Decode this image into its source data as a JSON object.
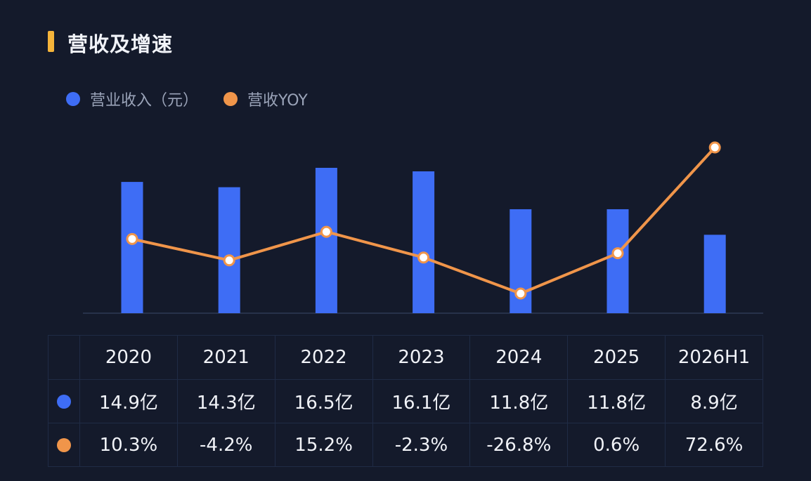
{
  "title": "营收及增速",
  "colors": {
    "revenue": "#3e6df5",
    "yoy": "#f0954a",
    "accent": "#f5b43a"
  },
  "legend": {
    "revenue": "营业收入（元）",
    "yoy": "营收YOY"
  },
  "chart_data": {
    "type": "bar",
    "categories": [
      "2020",
      "2021",
      "2022",
      "2023",
      "2024",
      "2025",
      "2026H1"
    ],
    "series": [
      {
        "name": "营业收入（元）",
        "type": "bar",
        "values": [
          14.9,
          14.3,
          16.5,
          16.1,
          11.8,
          11.8,
          8.9
        ],
        "labels": [
          "14.9亿",
          "14.3亿",
          "16.5亿",
          "16.1亿",
          "11.8亿",
          "11.8亿",
          "8.9亿"
        ]
      },
      {
        "name": "营收YOY",
        "type": "line",
        "values": [
          10.3,
          -4.2,
          15.2,
          -2.3,
          -26.8,
          0.6,
          72.6
        ],
        "labels": [
          "10.3%",
          "-4.2%",
          "15.2%",
          "-2.3%",
          "-26.8%",
          "0.6%",
          "72.6%"
        ]
      }
    ],
    "legend_position": "top-left",
    "grid": false
  }
}
